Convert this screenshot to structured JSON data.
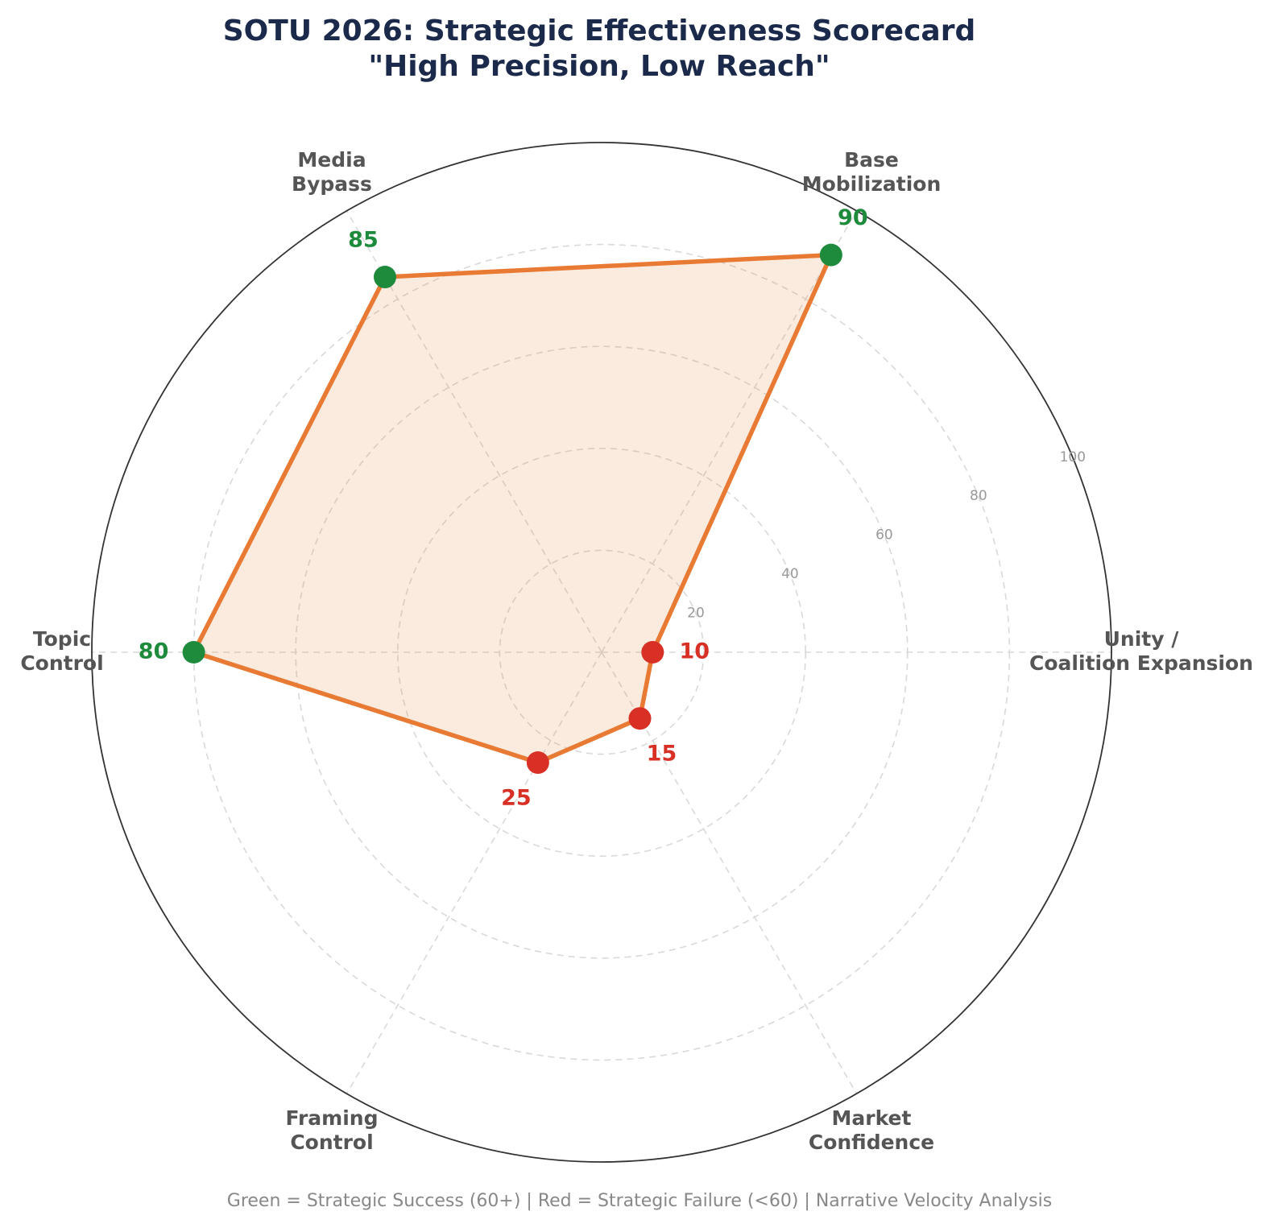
{
  "chart_data": {
    "type": "radar",
    "title_lines": [
      "SOTU 2026: Strategic Effectiveness Scorecard",
      "\"High Precision, Low Reach\""
    ],
    "categories": [
      {
        "lines": [
          "Unity /",
          "Coalition Expansion"
        ],
        "value": 10
      },
      {
        "lines": [
          "Base",
          "Mobilization"
        ],
        "value": 90
      },
      {
        "lines": [
          "Media",
          "Bypass"
        ],
        "value": 85
      },
      {
        "lines": [
          "Topic",
          "Control"
        ],
        "value": 80
      },
      {
        "lines": [
          "Framing",
          "Control"
        ],
        "value": 25
      },
      {
        "lines": [
          "Market",
          "Confidence"
        ],
        "value": 15
      }
    ],
    "rlim": [
      0,
      100
    ],
    "rticks": [
      "20",
      "40",
      "60",
      "80",
      "100"
    ],
    "success_threshold": 60,
    "footnote": "Green = Strategic Success (60+) | Red = Strategic Failure (<60) | Narrative Velocity Analysis",
    "colors": {
      "title": "#1b2a4a",
      "line": "#e87a33",
      "fill": "#e87a33",
      "success": "#1e8a3c",
      "failure": "#d93026",
      "grid": "#d9d9d9",
      "outer": "#333333",
      "category_text": "#555555",
      "tick_text": "#999999",
      "footnote": "#888888"
    }
  }
}
